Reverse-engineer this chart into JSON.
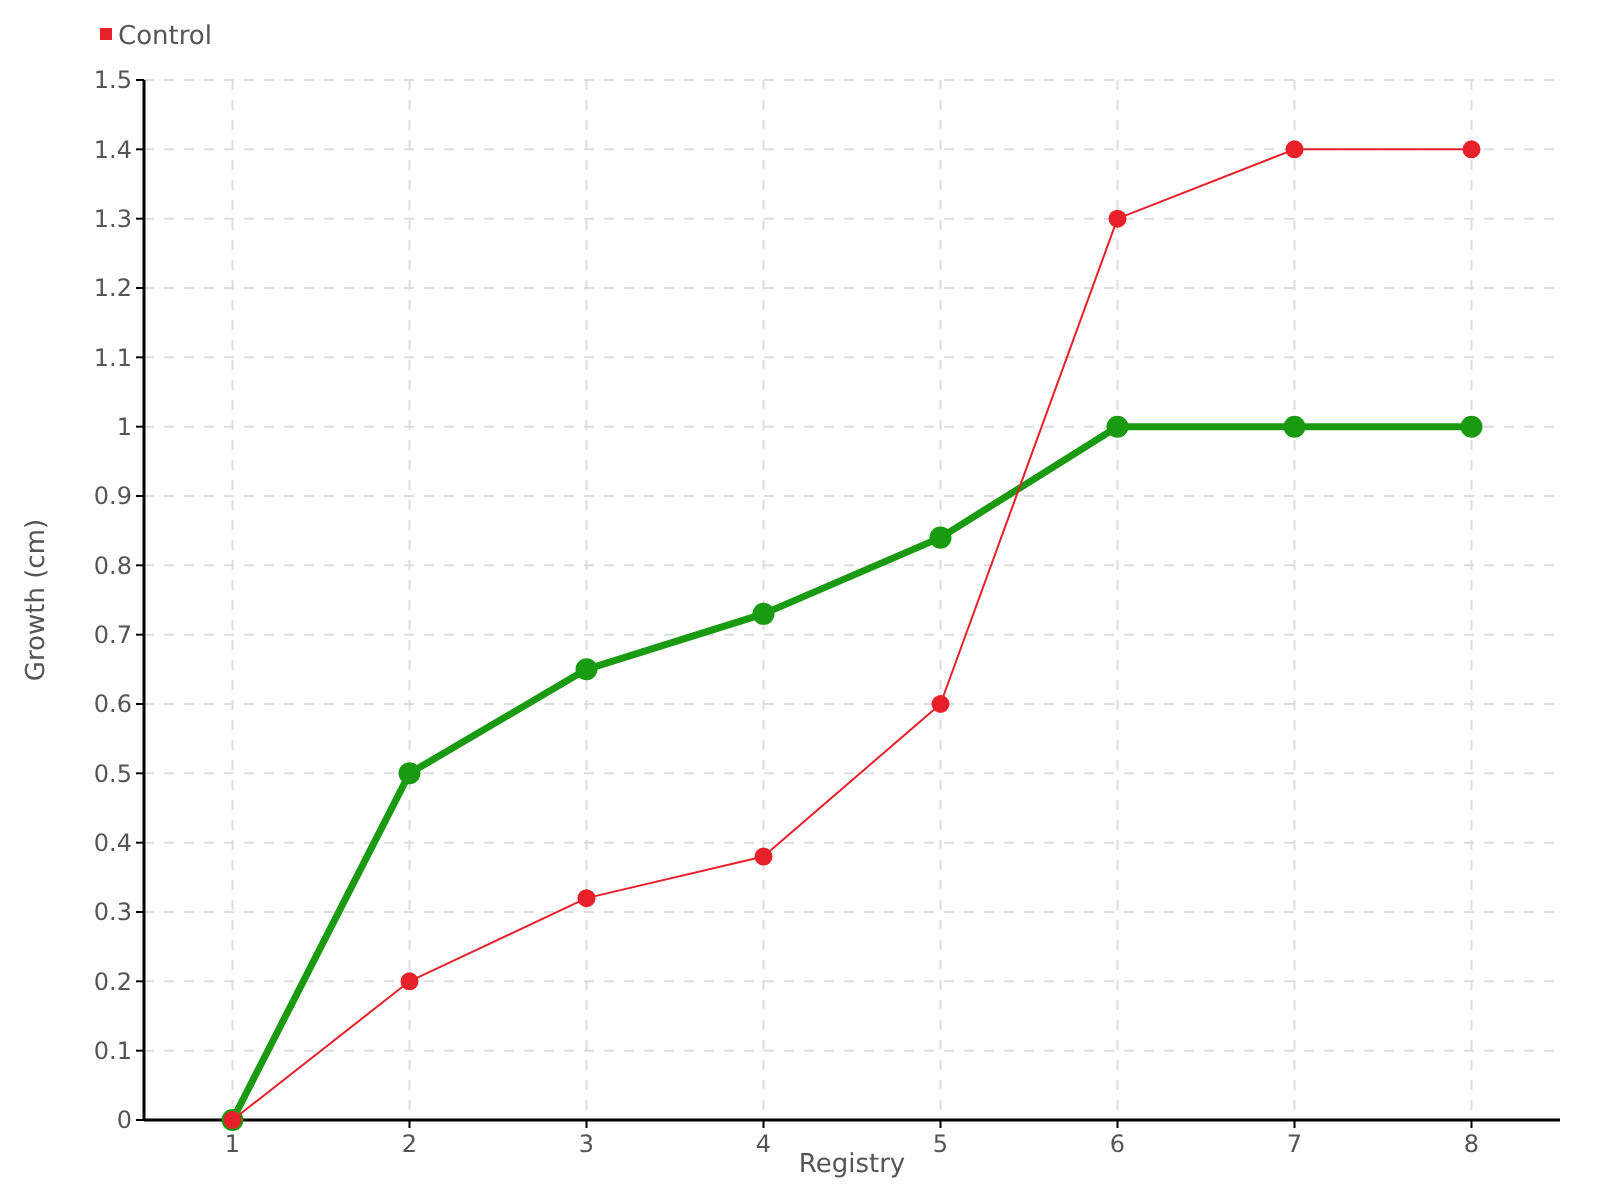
{
  "chart_data": {
    "type": "line",
    "xlabel": "Registry",
    "ylabel": "Growth (cm)",
    "x": [
      1,
      2,
      3,
      4,
      5,
      6,
      7,
      8
    ],
    "xlim": [
      0.5,
      8.5
    ],
    "xticks": [
      1,
      2,
      3,
      4,
      5,
      6,
      7,
      8
    ],
    "ylim": [
      0,
      1.5
    ],
    "yticks": [
      0,
      0.1,
      0.2,
      0.3,
      0.4,
      0.5,
      0.6,
      0.7,
      0.8,
      0.9,
      1,
      1.1,
      1.2,
      1.3,
      1.4,
      1.5
    ],
    "series": [
      {
        "color": "#1a9a10",
        "values": [
          0,
          0.5,
          0.65,
          0.73,
          0.84,
          1,
          1,
          1
        ]
      },
      {
        "name": "Control",
        "color": "#e8202a",
        "values": [
          0,
          0.2,
          0.32,
          0.38,
          0.6,
          1.3,
          1.4,
          1.4
        ]
      }
    ],
    "grid": true,
    "legend": "top left",
    "marker": "circle"
  }
}
